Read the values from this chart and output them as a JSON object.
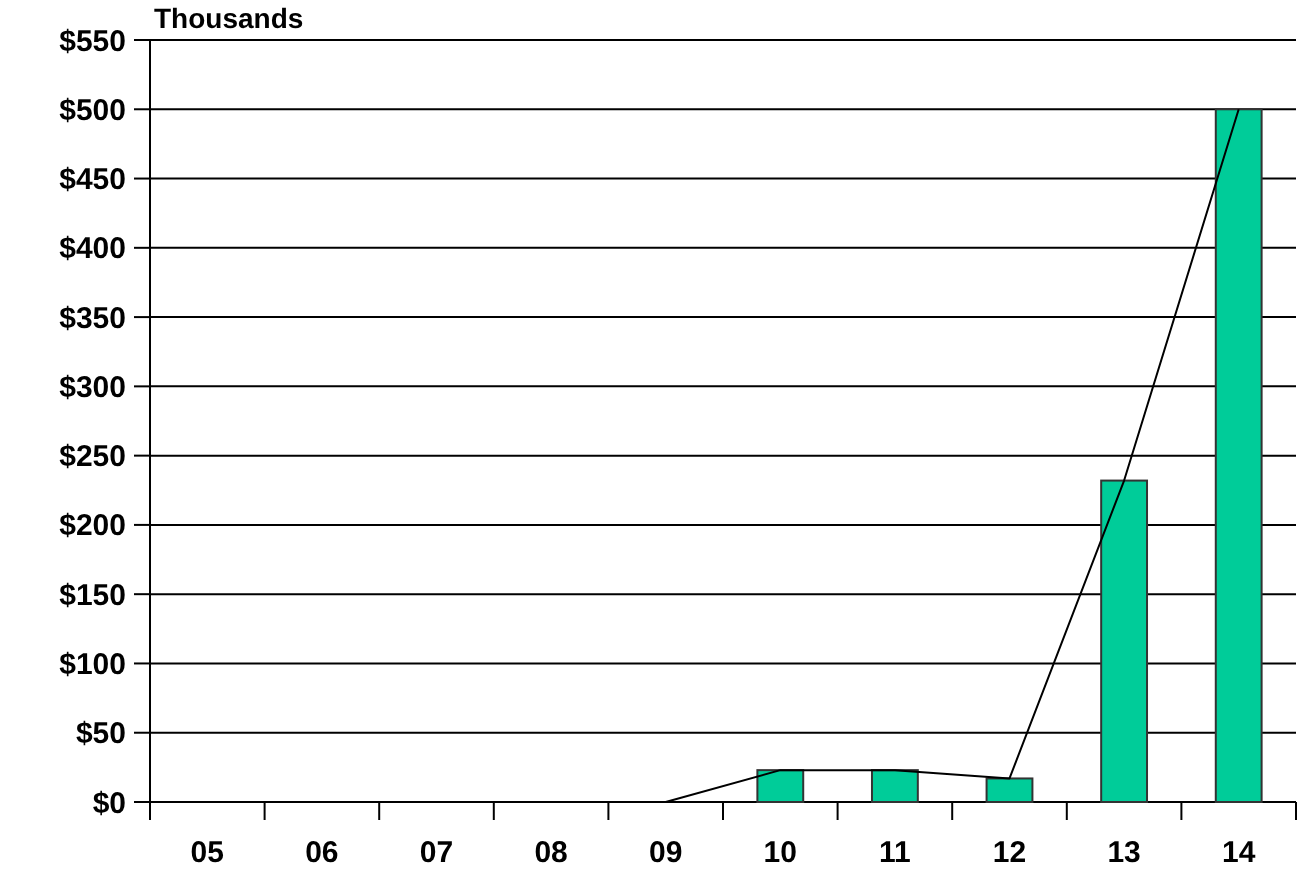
{
  "chart_data": {
    "type": "bar",
    "ylabel": "Thousands",
    "categories": [
      "05",
      "06",
      "07",
      "08",
      "09",
      "10",
      "11",
      "12",
      "13",
      "14"
    ],
    "series": [
      {
        "color": "#00cc99",
        "values": [
          0,
          0,
          0,
          0,
          0,
          23,
          23,
          17,
          232,
          500
        ]
      },
      {
        "type": "line",
        "color": "#000000",
        "values": [
          0,
          0,
          0,
          0,
          0,
          23,
          23,
          17,
          232,
          500
        ]
      }
    ],
    "ylim": [
      0,
      550
    ],
    "yticks": [
      {
        "value": 0,
        "label": "$0"
      },
      {
        "value": 50,
        "label": "$50"
      },
      {
        "value": 100,
        "label": "$100"
      },
      {
        "value": 150,
        "label": "$150"
      },
      {
        "value": 200,
        "label": "$200"
      },
      {
        "value": 250,
        "label": "$250"
      },
      {
        "value": 300,
        "label": "$300"
      },
      {
        "value": 350,
        "label": "$350"
      },
      {
        "value": 400,
        "label": "$400"
      },
      {
        "value": 450,
        "label": "$450"
      },
      {
        "value": 500,
        "label": "$500"
      },
      {
        "value": 550,
        "label": "$550"
      }
    ],
    "grid": "y"
  }
}
